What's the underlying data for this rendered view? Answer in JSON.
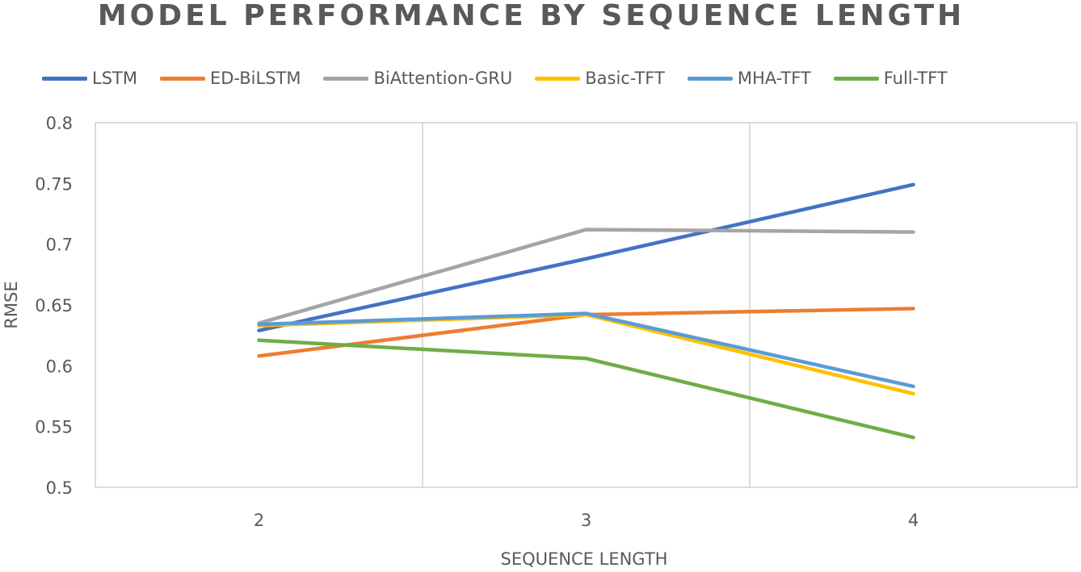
{
  "chart_data": {
    "type": "line",
    "title": "MODEL PERFORMANCE BY SEQUENCE LENGTH",
    "xlabel": "SEQUENCE LENGTH",
    "ylabel": "RMSE",
    "categories": [
      "2",
      "3",
      "4"
    ],
    "y_ticks": [
      "0.5",
      "0.55",
      "0.6",
      "0.65",
      "0.7",
      "0.75",
      "0.8"
    ],
    "ylim": [
      0.5,
      0.8
    ],
    "grid": "vertical",
    "legend_position": "top",
    "series": [
      {
        "name": "LSTM",
        "color": "#4472C4",
        "values": [
          0.629,
          0.688,
          0.749
        ]
      },
      {
        "name": "ED-BiLSTM",
        "color": "#ED7D31",
        "values": [
          0.608,
          0.642,
          0.647
        ]
      },
      {
        "name": "BiAttention-GRU",
        "color": "#A5A5A5",
        "values": [
          0.635,
          0.712,
          0.71
        ]
      },
      {
        "name": "Basic-TFT",
        "color": "#FFC000",
        "values": [
          0.633,
          0.642,
          0.577
        ]
      },
      {
        "name": "MHA-TFT",
        "color": "#5B9BD5",
        "values": [
          0.634,
          0.643,
          0.583
        ]
      },
      {
        "name": "Full-TFT",
        "color": "#70AD47",
        "values": [
          0.621,
          0.606,
          0.541
        ]
      }
    ]
  }
}
